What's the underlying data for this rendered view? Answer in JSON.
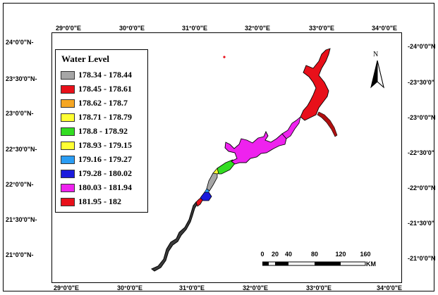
{
  "grid": {
    "top_labels": [
      "29°0'0\"E",
      "30°0'0\"E",
      "31°0'0\"E",
      "32°0'0\"E",
      "33°0'0\"E",
      "34°0'0\"E"
    ],
    "bottom_labels": [
      "29°0'0\"E",
      "30°0'0\"E",
      "31°0'0\"E",
      "32°0'0\"E",
      "33°0'0\"E",
      "34°0'0\"E"
    ],
    "left_labels": [
      "24°0'0\"N-",
      "23°30'0\"N-",
      "23°0'0\"N-",
      "22°30'0\"N-",
      "22°0'0\"N-",
      "21°30'0\"N-",
      "21°0'0\"N-"
    ],
    "right_labels": [
      "-24°0'0\"N",
      "-23°30'0\"",
      "-23°0'0\"N",
      "-22°30'0\"",
      "-22°0'0\"N",
      "-21°30'0\"",
      "-21°0'0\"N"
    ]
  },
  "legend": {
    "title": "Water Level",
    "items": [
      {
        "label": "178.34 - 178.44",
        "color": "#a6a6a6"
      },
      {
        "label": "178.45 - 178.61",
        "color": "#e8101a"
      },
      {
        "label": "178.62 - 178.7",
        "color": "#f5a623"
      },
      {
        "label": "178.71 - 178.79",
        "color": "#ffff33"
      },
      {
        "label": "178.8 - 178.92",
        "color": "#33dd22"
      },
      {
        "label": "178.93 - 179.15",
        "color": "#ffff33"
      },
      {
        "label": "179.16 - 179.27",
        "color": "#2a9df4"
      },
      {
        "label": "179.28 - 180.02",
        "color": "#1a1adc"
      },
      {
        "label": "180.03 - 181.94",
        "color": "#ee22ee"
      },
      {
        "label": "181.95 - 182",
        "color": "#e8101a"
      }
    ]
  },
  "north_arrow": {
    "letter": "N"
  },
  "scale_bar": {
    "ticks": [
      "0",
      "20",
      "40",
      "80",
      "120",
      "160"
    ],
    "unit": "KM"
  }
}
